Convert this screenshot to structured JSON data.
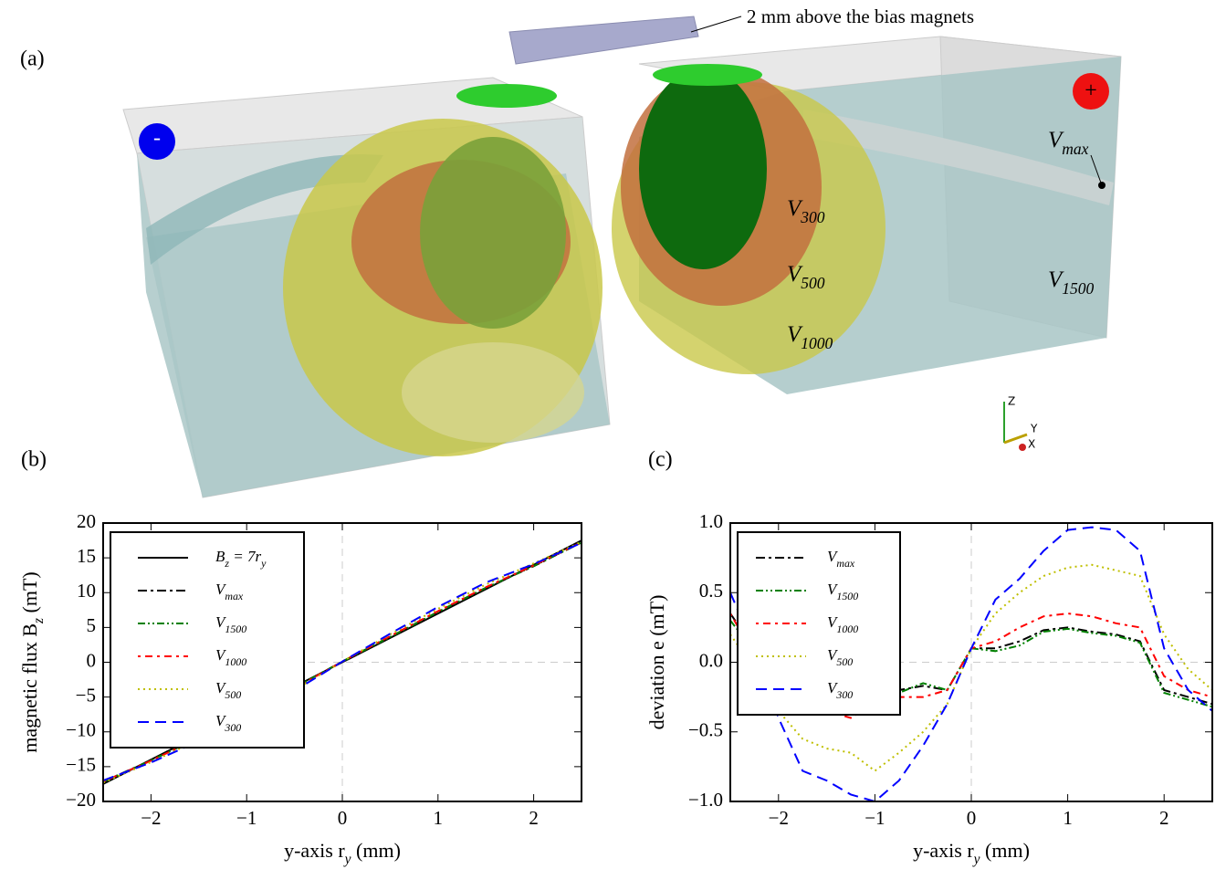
{
  "render": {
    "panel_label": "(a)",
    "magnet_note": "2 mm above the bias magnets",
    "pole_minus": "-",
    "pole_plus": "+",
    "volume_labels": [
      "Vmax",
      "V300",
      "V500",
      "V1000",
      "V1500"
    ],
    "axes_triad": [
      "Z",
      "Y",
      "X"
    ]
  },
  "chart_data": [
    {
      "type": "line",
      "label": "(b)",
      "xlabel": "y-axis ry (mm)",
      "ylabel": "magnetic flux Bz (mT)",
      "xlim": [
        -2.5,
        2.5
      ],
      "ylim": [
        -20,
        20
      ],
      "xticks": [
        {
          "value": -2,
          "label": "−2"
        },
        {
          "value": -1,
          "label": "−1"
        },
        0,
        1,
        2
      ],
      "yticks": [
        {
          "value": -20,
          "label": "−20"
        },
        {
          "value": -15,
          "label": "−15"
        },
        {
          "value": -10,
          "label": "−10"
        },
        {
          "value": -5,
          "label": "−5"
        },
        0,
        5,
        10,
        15,
        20
      ],
      "reference_lines": {
        "x": 0,
        "y": 0
      },
      "legend": "upper left",
      "series": [
        {
          "name": "Bz = 7ry",
          "color": "#000000",
          "style": "solid",
          "x": [
            -2.5,
            2.5
          ],
          "values": [
            -17.5,
            17.5
          ]
        },
        {
          "name": "Vmax",
          "color": "#000000",
          "style": "dashdot",
          "x": [
            -2.5,
            -2,
            -1.5,
            -1,
            -0.5,
            0,
            0.5,
            1,
            1.5,
            2,
            2.5
          ],
          "values": [
            -17.15,
            -14.1,
            -10.8,
            -7.3,
            -3.67,
            0.1,
            3.65,
            7.25,
            10.7,
            13.8,
            17.2
          ]
        },
        {
          "name": "V1500",
          "color": "#008000",
          "style": "dashdotdot",
          "x": [
            -2.5,
            -2,
            -1.5,
            -1,
            -0.5,
            0,
            0.5,
            1,
            1.5,
            2,
            2.5
          ],
          "values": [
            -17.2,
            -14.1,
            -10.8,
            -7.3,
            -3.65,
            0.1,
            3.62,
            7.23,
            10.68,
            13.82,
            17.2
          ]
        },
        {
          "name": "V1000",
          "color": "#ff0000",
          "style": "dashdot2",
          "x": [
            -2.5,
            -2,
            -1.5,
            -1,
            -0.5,
            0,
            0.5,
            1,
            1.5,
            2,
            2.5
          ],
          "values": [
            -17.15,
            -14.15,
            -10.85,
            -7.3,
            -3.75,
            0.1,
            3.75,
            7.35,
            10.78,
            13.9,
            17.25
          ]
        },
        {
          "name": "V500",
          "color": "#bfbf00",
          "style": "dotted",
          "x": [
            -2.5,
            -2,
            -1.5,
            -1,
            -0.5,
            0,
            0.5,
            1,
            1.5,
            2,
            2.5
          ],
          "values": [
            -17.3,
            -14.35,
            -11.12,
            -7.7,
            -4.0,
            0.1,
            4.0,
            7.68,
            11.16,
            14.2,
            17.3
          ]
        },
        {
          "name": "V300",
          "color": "#0000ff",
          "style": "dashed",
          "x": [
            -2.5,
            -2,
            -1.5,
            -1,
            -0.5,
            0,
            0.5,
            1,
            1.5,
            2,
            2.5
          ],
          "values": [
            -17.0,
            -14.4,
            -11.35,
            -8.0,
            -4.1,
            0.1,
            4.1,
            7.95,
            11.45,
            14.1,
            17.15
          ]
        }
      ]
    },
    {
      "type": "line",
      "label": "(c)",
      "xlabel": "y-axis ry (mm)",
      "ylabel": "deviation e (mT)",
      "xlim": [
        -2.5,
        2.5
      ],
      "ylim": [
        -1.0,
        1.0
      ],
      "xticks": [
        {
          "value": -2,
          "label": "−2"
        },
        {
          "value": -1,
          "label": "−1"
        },
        0,
        1,
        2
      ],
      "yticks": [
        {
          "value": -1.0,
          "label": "−1.0"
        },
        {
          "value": -0.5,
          "label": "−0.5"
        },
        {
          "value": 0.0,
          "label": "0.0"
        },
        0.5,
        {
          "value": 1.0,
          "label": "1.0"
        }
      ],
      "reference_lines": {
        "x": 0,
        "y": 0
      },
      "legend": "upper left",
      "series": [
        {
          "name": "Vmax",
          "color": "#000000",
          "style": "dashdot",
          "x": [
            -2.5,
            -2.25,
            -2,
            -1.75,
            -1.5,
            -1.25,
            -1,
            -0.75,
            -0.5,
            -0.25,
            0,
            0.25,
            0.5,
            0.75,
            1,
            1.25,
            1.5,
            1.75,
            2,
            2.25,
            2.5
          ],
          "values": [
            0.35,
            0.1,
            -0.1,
            -0.25,
            -0.3,
            -0.35,
            -0.3,
            -0.2,
            -0.17,
            -0.2,
            0.1,
            0.1,
            0.15,
            0.23,
            0.25,
            0.22,
            0.2,
            0.15,
            -0.2,
            -0.25,
            -0.3
          ]
        },
        {
          "name": "V1500",
          "color": "#008000",
          "style": "dashdotdot",
          "x": [
            -2.5,
            -2.25,
            -2,
            -1.75,
            -1.5,
            -1.25,
            -1,
            -0.75,
            -0.5,
            -0.25,
            0,
            0.25,
            0.5,
            0.75,
            1,
            1.25,
            1.5,
            1.75,
            2,
            2.25,
            2.5
          ],
          "values": [
            0.3,
            0.08,
            -0.12,
            -0.26,
            -0.31,
            -0.34,
            -0.3,
            -0.22,
            -0.15,
            -0.2,
            0.1,
            0.08,
            0.12,
            0.22,
            0.24,
            0.21,
            0.19,
            0.14,
            -0.22,
            -0.27,
            -0.32
          ]
        },
        {
          "name": "V1000",
          "color": "#ff0000",
          "style": "dashdot2",
          "x": [
            -2.5,
            -2.25,
            -2,
            -1.75,
            -1.5,
            -1.25,
            -1,
            -0.75,
            -0.5,
            -0.25,
            0,
            0.25,
            0.5,
            0.75,
            1,
            1.25,
            1.5,
            1.75,
            2,
            2.25,
            2.5
          ],
          "values": [
            0.35,
            0.05,
            -0.15,
            -0.3,
            -0.35,
            -0.4,
            -0.3,
            -0.25,
            -0.25,
            -0.2,
            0.1,
            0.15,
            0.25,
            0.33,
            0.35,
            0.33,
            0.28,
            0.25,
            -0.1,
            -0.2,
            -0.25
          ]
        },
        {
          "name": "V500",
          "color": "#bfbf00",
          "style": "dotted",
          "x": [
            -2.5,
            -2.25,
            -2,
            -1.75,
            -1.5,
            -1.25,
            -1,
            -0.75,
            -0.5,
            -0.25,
            0,
            0.25,
            0.5,
            0.75,
            1,
            1.25,
            1.5,
            1.75,
            2,
            2.25,
            2.5
          ],
          "values": [
            0.2,
            -0.05,
            -0.35,
            -0.55,
            -0.62,
            -0.65,
            -0.78,
            -0.65,
            -0.5,
            -0.3,
            0.1,
            0.35,
            0.5,
            0.62,
            0.68,
            0.7,
            0.66,
            0.62,
            0.2,
            -0.05,
            -0.2
          ]
        },
        {
          "name": "V300",
          "color": "#0000ff",
          "style": "dashed",
          "x": [
            -2.5,
            -2.25,
            -2,
            -1.75,
            -1.5,
            -1.25,
            -1,
            -0.75,
            -0.5,
            -0.25,
            0,
            0.25,
            0.5,
            0.75,
            1,
            1.25,
            1.5,
            1.75,
            2,
            2.25,
            2.5
          ],
          "values": [
            0.5,
            0.1,
            -0.4,
            -0.78,
            -0.85,
            -0.95,
            -1.0,
            -0.85,
            -0.6,
            -0.3,
            0.1,
            0.45,
            0.6,
            0.8,
            0.95,
            0.97,
            0.95,
            0.8,
            0.1,
            -0.2,
            -0.35
          ]
        }
      ]
    }
  ]
}
